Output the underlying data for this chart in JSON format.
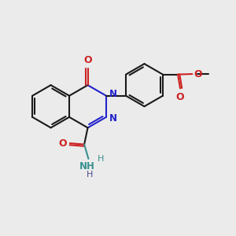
{
  "bg_color": "#ebebeb",
  "bond_color": "#1a1a1a",
  "n_color": "#2222cc",
  "o_color": "#cc2222",
  "nh_color": "#3a9090",
  "line_width": 1.5,
  "fig_size": [
    3.0,
    3.0
  ],
  "dpi": 100,
  "xlim": [
    0,
    10
  ],
  "ylim": [
    0,
    10
  ]
}
